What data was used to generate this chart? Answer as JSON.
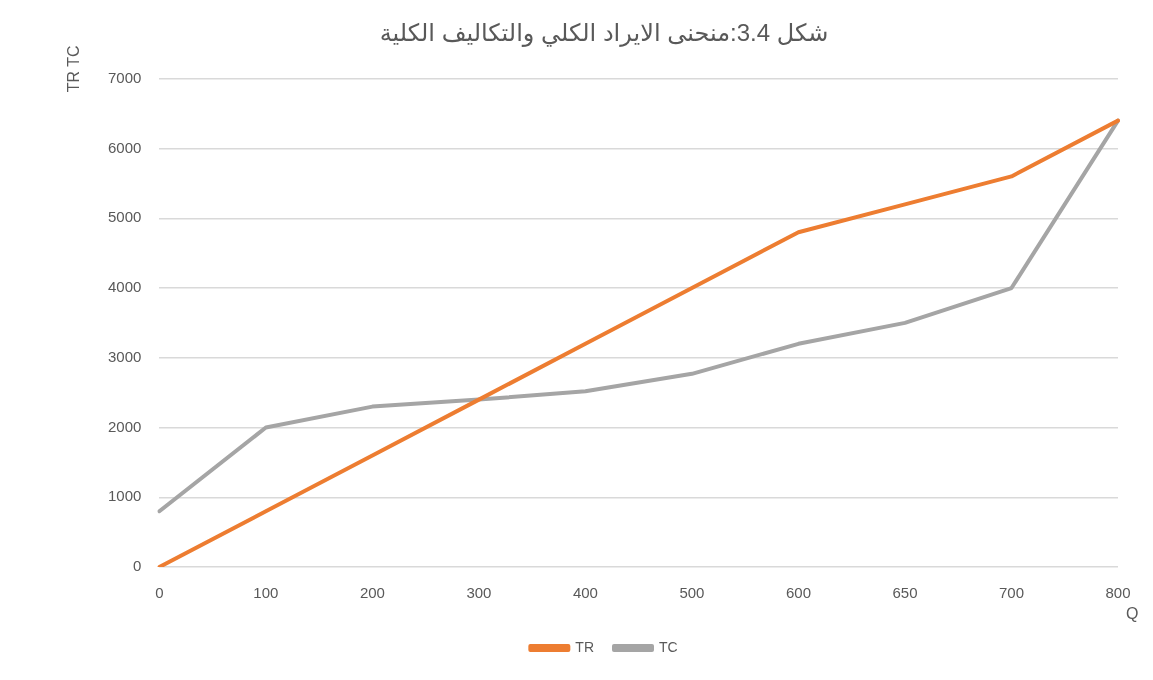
{
  "chart_data": {
    "type": "line",
    "title": "شكل 3.4:منحنى الايراد الكلي والتكاليف الكلية",
    "xlabel": "Q",
    "ylabel": "TR TC",
    "categories": [
      "0",
      "100",
      "200",
      "300",
      "400",
      "500",
      "600",
      "650",
      "700",
      "800"
    ],
    "series": [
      {
        "name": "TR",
        "color": "#ed7d31",
        "values": [
          0,
          800,
          1600,
          2400,
          3200,
          4000,
          4800,
          5200,
          5600,
          6400
        ]
      },
      {
        "name": "TC",
        "color": "#a5a5a5",
        "values": [
          800,
          2000,
          2300,
          2400,
          2520,
          2770,
          3200,
          3500,
          4000,
          6400
        ]
      }
    ],
    "ylim": [
      0,
      7000
    ],
    "yticks": [
      0,
      1000,
      2000,
      3000,
      4000,
      5000,
      6000,
      7000
    ],
    "grid": "y",
    "legend": "bottom",
    "marker": "none",
    "line_style": "solid"
  }
}
